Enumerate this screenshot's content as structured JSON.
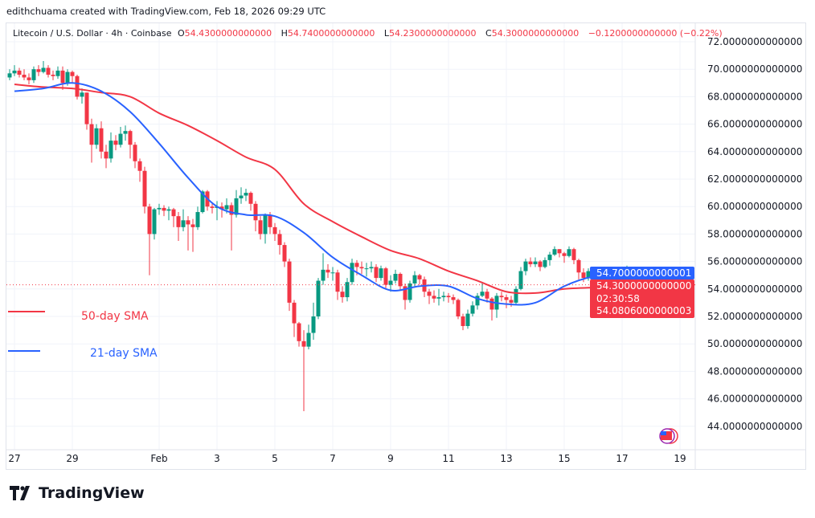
{
  "credit": "edithchuama created with TradingView.com, Feb 18, 2026 09:29 UTC",
  "legend": {
    "symbol": "Litecoin / U.S. Dollar · 4h · Coinbase",
    "open_label": "O",
    "open": "54.4300000000000",
    "high_label": "H",
    "high": "54.7400000000000",
    "low_label": "L",
    "low": "54.2300000000000",
    "close_label": "C",
    "close": "54.3000000000000",
    "change": "−0.1200000000000 (−0.22%)"
  },
  "annotations": {
    "sma50": {
      "label": "50-day SMA",
      "color": "#f23645"
    },
    "sma21": {
      "label": "21-day SMA",
      "color": "#2962ff"
    }
  },
  "price_labels": {
    "sma21_value": "54.7000000000001",
    "last_price": "54.3000000000000",
    "countdown": "02:30:58",
    "sma50_value": "54.0806000000003"
  },
  "brand": "TradingView",
  "colors": {
    "up": "#089981",
    "down": "#f23645",
    "grid": "#f0f3fa",
    "sma50": "#f23645",
    "sma21": "#2962ff"
  },
  "chart_data": {
    "type": "candlestick",
    "interval": "4h",
    "start_time": "2026-01-26 20:00",
    "ylim": [
      43,
      73
    ],
    "grid": true,
    "y_ticks": [
      "72.0000000000000",
      "70.0000000000000",
      "68.0000000000000",
      "66.0000000000000",
      "64.0000000000000",
      "62.0000000000000",
      "60.0000000000000",
      "58.0000000000000",
      "56.0000000000000",
      "54.0000000000000",
      "52.0000000000000",
      "50.0000000000000",
      "48.0000000000000",
      "46.0000000000000",
      "44.0000000000000"
    ],
    "y_tick_values": [
      72,
      70,
      68,
      66,
      64,
      62,
      60,
      58,
      56,
      54,
      52,
      50,
      48,
      46,
      44
    ],
    "x_ticks": [
      {
        "label": "27",
        "day": 0
      },
      {
        "label": "29",
        "day": 2
      },
      {
        "label": "Feb",
        "day": 5
      },
      {
        "label": "3",
        "day": 7
      },
      {
        "label": "5",
        "day": 9
      },
      {
        "label": "7",
        "day": 11
      },
      {
        "label": "9",
        "day": 13
      },
      {
        "label": "11",
        "day": 15
      },
      {
        "label": "13",
        "day": 17
      },
      {
        "label": "15",
        "day": 19
      },
      {
        "label": "17",
        "day": 21
      },
      {
        "label": "19",
        "day": 23
      }
    ],
    "candles_ohlc": [
      [
        69.4,
        70.0,
        69.2,
        69.7
      ],
      [
        69.7,
        70.3,
        69.5,
        69.9
      ],
      [
        69.9,
        70.1,
        69.4,
        69.6
      ],
      [
        69.6,
        70.0,
        69.2,
        69.4
      ],
      [
        69.4,
        69.7,
        68.9,
        69.2
      ],
      [
        69.2,
        70.2,
        69.0,
        70.0
      ],
      [
        70.0,
        70.3,
        69.5,
        69.8
      ],
      [
        69.8,
        70.6,
        69.7,
        70.1
      ],
      [
        70.1,
        70.3,
        69.4,
        69.6
      ],
      [
        69.6,
        69.9,
        69.2,
        69.5
      ],
      [
        69.5,
        70.2,
        69.3,
        69.9
      ],
      [
        69.9,
        70.2,
        68.5,
        69.0
      ],
      [
        69.0,
        70.0,
        68.8,
        69.8
      ],
      [
        69.8,
        69.9,
        69.0,
        69.5
      ],
      [
        69.5,
        69.6,
        67.8,
        68.0
      ],
      [
        68.0,
        68.6,
        67.5,
        68.3
      ],
      [
        68.3,
        68.3,
        65.6,
        66.0
      ],
      [
        66.0,
        66.4,
        63.2,
        64.5
      ],
      [
        64.5,
        66.0,
        64.2,
        65.7
      ],
      [
        65.7,
        66.2,
        63.5,
        64.0
      ],
      [
        64.0,
        64.5,
        62.8,
        63.5
      ],
      [
        63.5,
        65.4,
        63.2,
        64.8
      ],
      [
        64.8,
        65.2,
        64.1,
        64.5
      ],
      [
        64.5,
        65.8,
        64.3,
        65.3
      ],
      [
        65.3,
        65.9,
        64.8,
        65.5
      ],
      [
        65.5,
        65.6,
        63.5,
        64.5
      ],
      [
        64.5,
        64.7,
        62.8,
        63.3
      ],
      [
        63.3,
        63.5,
        61.8,
        62.6
      ],
      [
        62.6,
        62.9,
        59.5,
        60.0
      ],
      [
        60.0,
        60.2,
        55.0,
        58.0
      ],
      [
        58.0,
        59.9,
        57.6,
        59.8
      ],
      [
        59.8,
        60.2,
        59.4,
        59.9
      ],
      [
        59.9,
        60.1,
        59.3,
        59.7
      ],
      [
        59.7,
        60.0,
        59.0,
        59.8
      ],
      [
        59.8,
        59.9,
        58.5,
        59.3
      ],
      [
        59.3,
        59.6,
        57.5,
        58.5
      ],
      [
        58.5,
        59.8,
        58.2,
        59.0
      ],
      [
        59.0,
        59.3,
        56.8,
        58.7
      ],
      [
        58.7,
        59.1,
        56.7,
        58.5
      ],
      [
        58.5,
        60.0,
        58.3,
        59.6
      ],
      [
        59.6,
        61.2,
        59.5,
        61.1
      ],
      [
        61.1,
        61.2,
        59.7,
        60.0
      ],
      [
        60.0,
        60.2,
        59.5,
        59.9
      ],
      [
        59.9,
        60.4,
        59.0,
        60.0
      ],
      [
        60.0,
        60.3,
        59.2,
        59.8
      ],
      [
        59.8,
        60.6,
        59.5,
        60.1
      ],
      [
        60.1,
        60.3,
        56.8,
        59.4
      ],
      [
        59.4,
        61.2,
        59.2,
        60.6
      ],
      [
        60.6,
        61.4,
        60.2,
        60.8
      ],
      [
        60.8,
        61.3,
        60.4,
        61.0
      ],
      [
        61.0,
        61.1,
        59.7,
        60.2
      ],
      [
        60.2,
        60.4,
        58.2,
        59.0
      ],
      [
        59.0,
        59.3,
        57.6,
        58.0
      ],
      [
        58.0,
        59.5,
        57.3,
        59.4
      ],
      [
        59.4,
        59.6,
        58.0,
        58.5
      ],
      [
        58.5,
        58.8,
        57.5,
        58.0
      ],
      [
        58.0,
        58.3,
        56.5,
        57.2
      ],
      [
        57.2,
        57.4,
        55.6,
        56.0
      ],
      [
        56.0,
        56.2,
        52.4,
        53.0
      ],
      [
        53.0,
        53.2,
        50.5,
        51.5
      ],
      [
        51.5,
        51.6,
        49.8,
        50.2
      ],
      [
        50.2,
        51.0,
        45.1,
        49.8
      ],
      [
        49.8,
        51.4,
        49.6,
        50.8
      ],
      [
        50.8,
        53.0,
        50.3,
        52.0
      ],
      [
        52.0,
        54.8,
        51.8,
        54.6
      ],
      [
        54.6,
        56.6,
        54.3,
        55.4
      ],
      [
        55.4,
        55.8,
        54.8,
        55.2
      ],
      [
        55.2,
        55.6,
        54.6,
        55.2
      ],
      [
        55.2,
        55.4,
        53.2,
        53.8
      ],
      [
        53.8,
        54.2,
        53.0,
        53.4
      ],
      [
        53.4,
        54.8,
        53.1,
        54.5
      ],
      [
        54.5,
        56.2,
        54.3,
        55.9
      ],
      [
        55.9,
        56.1,
        55.0,
        55.6
      ],
      [
        55.6,
        56.0,
        55.1,
        55.5
      ],
      [
        55.5,
        55.9,
        54.9,
        55.5
      ],
      [
        55.5,
        56.0,
        55.2,
        55.6
      ],
      [
        55.6,
        55.8,
        54.5,
        54.8
      ],
      [
        54.8,
        55.7,
        54.6,
        55.5
      ],
      [
        55.5,
        55.6,
        54.0,
        54.3
      ],
      [
        54.3,
        55.0,
        53.8,
        54.6
      ],
      [
        54.6,
        55.4,
        54.4,
        55.1
      ],
      [
        55.1,
        55.2,
        53.9,
        54.2
      ],
      [
        54.2,
        54.4,
        52.5,
        53.2
      ],
      [
        53.2,
        54.6,
        53.0,
        54.4
      ],
      [
        54.4,
        55.3,
        54.2,
        55.0
      ],
      [
        55.0,
        55.1,
        54.3,
        54.7
      ],
      [
        54.7,
        54.9,
        53.4,
        53.8
      ],
      [
        53.8,
        54.0,
        52.9,
        53.5
      ],
      [
        53.5,
        53.9,
        53.0,
        53.3
      ],
      [
        53.3,
        54.0,
        52.8,
        53.4
      ],
      [
        53.4,
        53.8,
        53.1,
        53.5
      ],
      [
        53.5,
        53.7,
        53.0,
        53.4
      ],
      [
        53.4,
        53.6,
        52.9,
        53.2
      ],
      [
        53.2,
        53.3,
        51.8,
        52.0
      ],
      [
        52.0,
        52.2,
        51.0,
        51.3
      ],
      [
        51.3,
        52.5,
        51.1,
        52.2
      ],
      [
        52.2,
        53.1,
        52.0,
        52.8
      ],
      [
        52.8,
        53.7,
        52.5,
        53.5
      ],
      [
        53.5,
        54.5,
        53.4,
        53.8
      ],
      [
        53.8,
        54.0,
        53.0,
        53.3
      ],
      [
        53.3,
        53.4,
        51.7,
        52.5
      ],
      [
        52.5,
        53.7,
        51.9,
        53.5
      ],
      [
        53.5,
        53.8,
        53.1,
        53.4
      ],
      [
        53.4,
        53.6,
        52.6,
        53.2
      ],
      [
        53.2,
        53.5,
        52.7,
        53.0
      ],
      [
        53.0,
        54.2,
        52.9,
        54.0
      ],
      [
        54.0,
        55.6,
        53.9,
        55.3
      ],
      [
        55.3,
        56.2,
        55.0,
        56.0
      ],
      [
        56.0,
        56.3,
        55.6,
        55.8
      ],
      [
        55.8,
        56.3,
        55.6,
        56.0
      ],
      [
        56.0,
        56.1,
        55.3,
        55.6
      ],
      [
        55.6,
        56.3,
        55.5,
        56.1
      ],
      [
        56.1,
        56.7,
        55.7,
        56.5
      ],
      [
        56.5,
        57.1,
        56.4,
        56.9
      ],
      [
        56.9,
        56.9,
        56.3,
        56.6
      ],
      [
        56.6,
        56.7,
        55.9,
        56.4
      ],
      [
        56.4,
        57.1,
        56.3,
        56.9
      ],
      [
        56.9,
        57.0,
        55.8,
        56.1
      ],
      [
        56.1,
        56.2,
        54.7,
        55.2
      ],
      [
        55.2,
        55.5,
        54.5,
        54.8
      ],
      [
        54.8,
        55.5,
        54.6,
        55.3
      ],
      [
        55.3,
        55.6,
        54.4,
        54.7
      ],
      [
        54.7,
        55.3,
        54.5,
        55.0
      ],
      [
        55.0,
        55.1,
        54.0,
        54.3
      ],
      [
        54.3,
        54.6,
        53.5,
        54.1
      ],
      [
        54.1,
        55.0,
        53.5,
        53.9
      ],
      [
        53.9,
        55.3,
        53.8,
        54.9
      ],
      [
        54.9,
        55.5,
        54.8,
        55.2
      ],
      [
        55.2,
        55.7,
        55.0,
        55.4
      ],
      [
        55.4,
        55.6,
        53.6,
        54.0
      ],
      [
        54.0,
        54.9,
        53.6,
        53.8
      ],
      [
        53.8,
        54.4,
        53.6,
        54.2
      ],
      [
        54.2,
        54.4,
        53.8,
        54.0
      ],
      [
        54.0,
        54.5,
        53.8,
        54.3
      ],
      [
        54.3,
        54.6,
        54.1,
        54.43
      ],
      [
        54.43,
        54.74,
        54.23,
        54.3
      ]
    ],
    "series": [
      {
        "name": "50-day SMA",
        "daily_values": [
          68.9,
          68.7,
          68.6,
          68.3,
          68.0,
          66.8,
          65.9,
          64.8,
          63.6,
          62.7,
          60.2,
          58.9,
          57.8,
          56.8,
          56.2,
          55.3,
          54.6,
          53.8,
          53.7,
          54.0,
          54.1,
          54.1,
          54.1
        ],
        "last": 54.0806
      },
      {
        "name": "21-day SMA",
        "daily_values": [
          68.4,
          68.6,
          69.0,
          68.4,
          66.9,
          64.6,
          62.1,
          60.0,
          59.4,
          59.3,
          58.1,
          56.3,
          55.0,
          53.9,
          54.2,
          54.2,
          53.3,
          52.9,
          53.0,
          54.2,
          54.9,
          55.0,
          54.8
        ],
        "last": 54.7
      }
    ],
    "last_price": 54.3
  }
}
